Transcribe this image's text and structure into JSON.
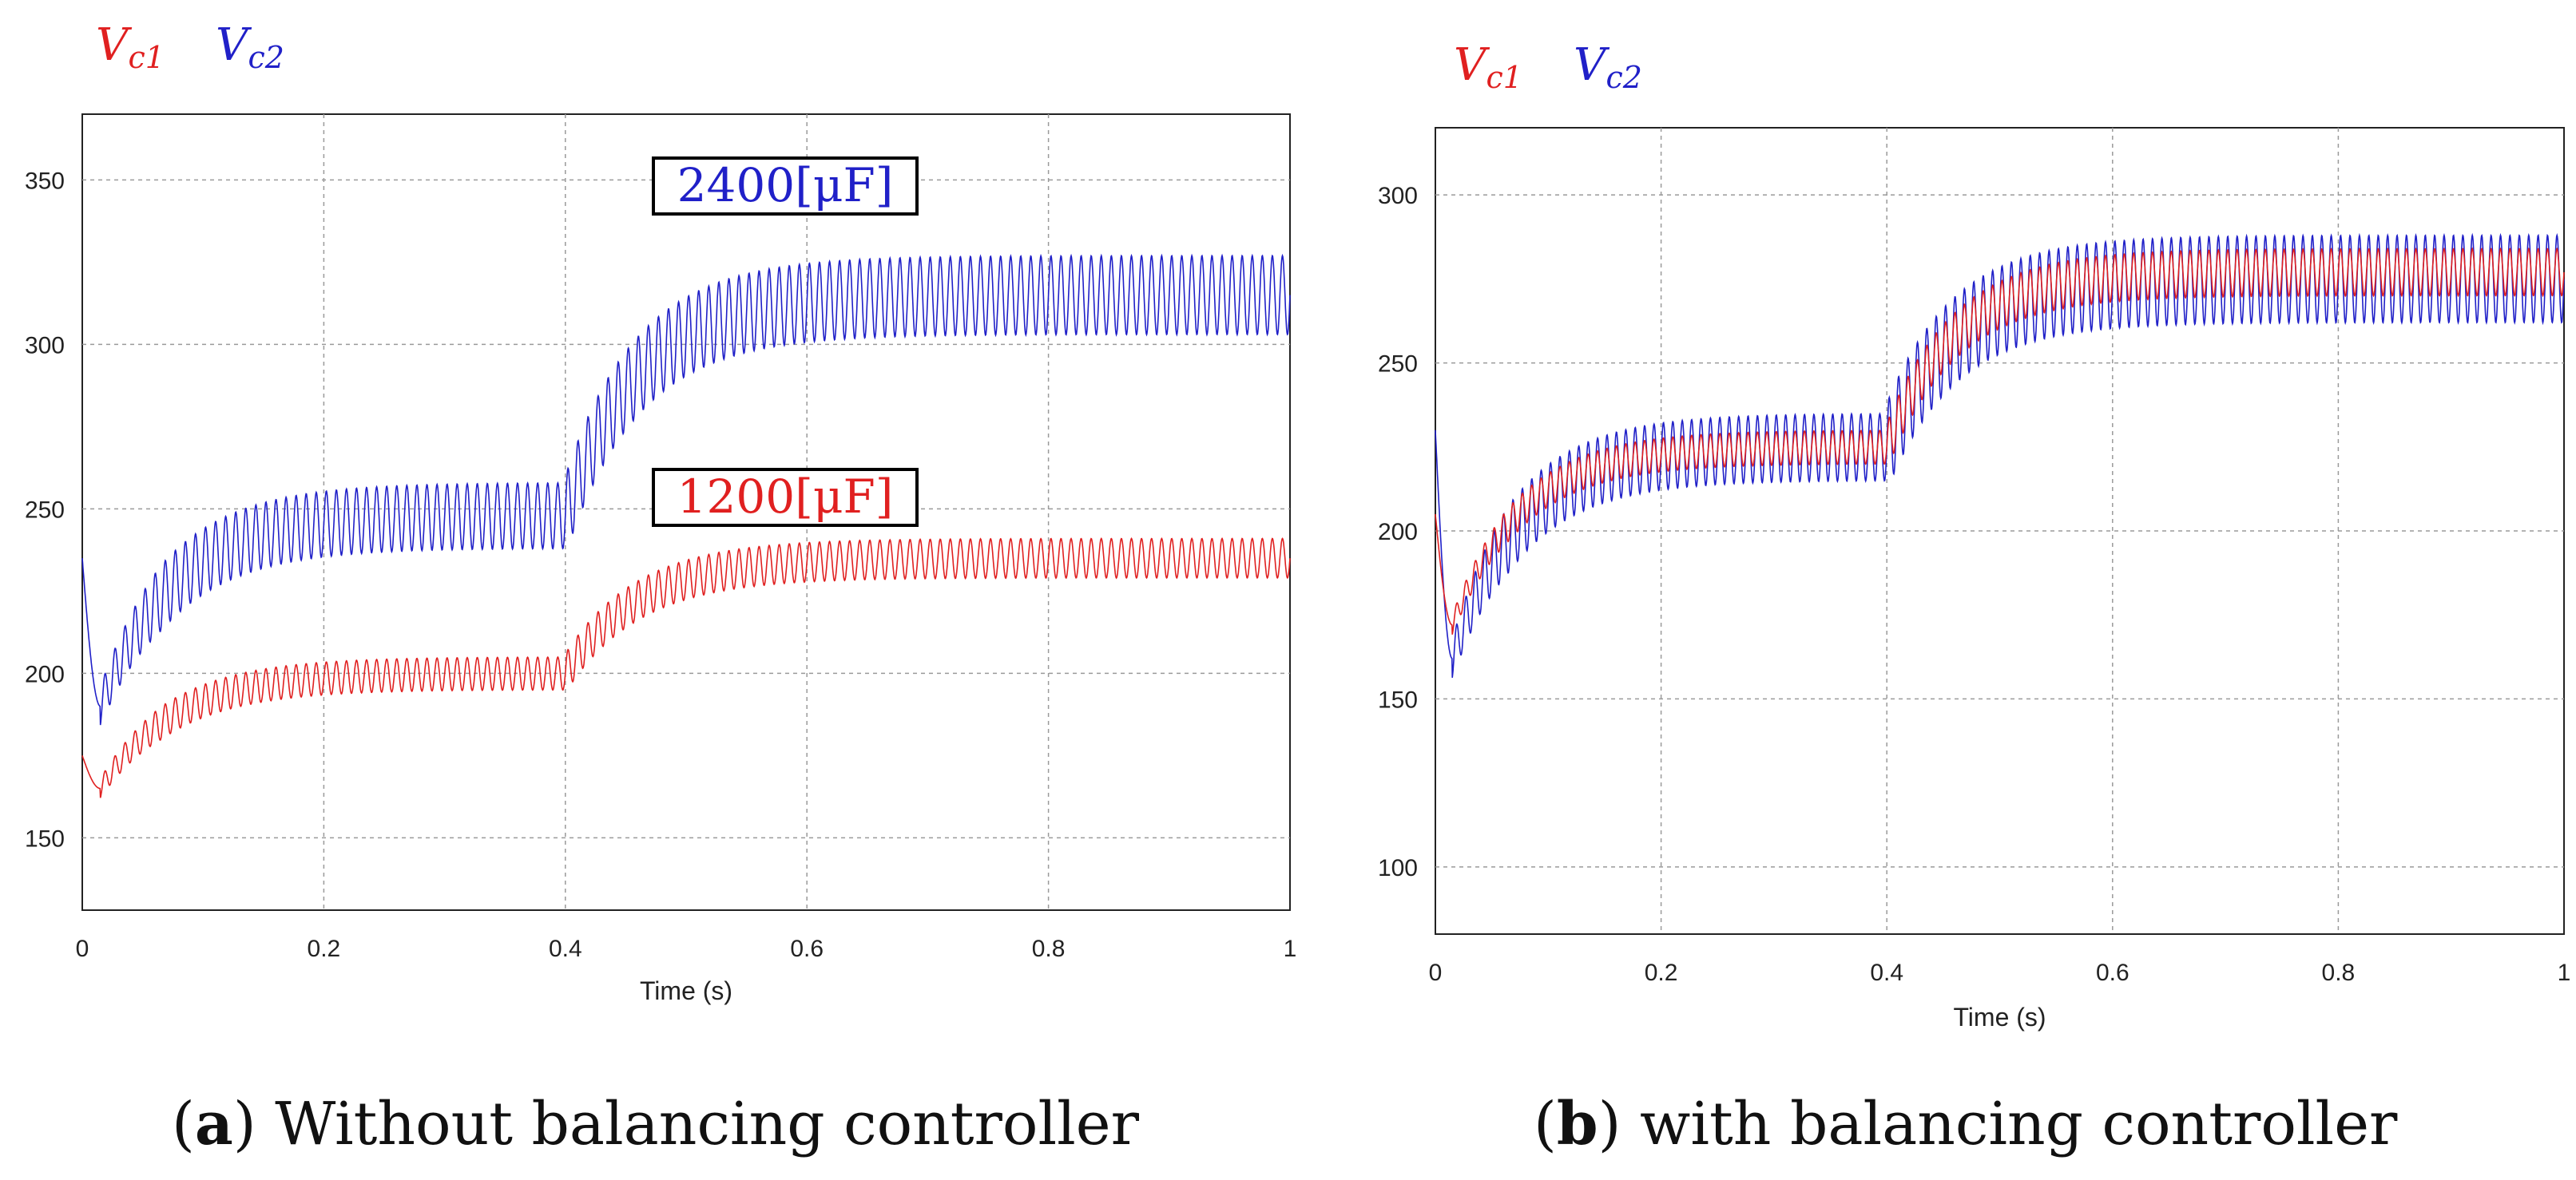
{
  "colors": {
    "vc1": "#e02020",
    "vc2": "#2020c8"
  },
  "chart_data": [
    {
      "type": "line",
      "legend": {
        "vc1": "Vc1",
        "vc2": "Vc2",
        "placement": "top-left"
      },
      "xlabel": "Time (s)",
      "ylabel": "",
      "xlim": [
        0,
        1
      ],
      "ylim": [
        128,
        370
      ],
      "xticks": [
        "0",
        "0.2",
        "0.4",
        "0.6",
        "0.8",
        "1"
      ],
      "yticks": [
        "150",
        "200",
        "250",
        "300",
        "350"
      ],
      "grid": true,
      "annotations": [
        "2400[μF]",
        "1200[μF]"
      ],
      "series": [
        {
          "name": "Vc1",
          "start": 175,
          "dip_min": 165,
          "level_1": 200,
          "ripple_1": 5,
          "step_time": 0.4,
          "level_2": 235,
          "ripple_2": 6,
          "rise_tau": 0.06
        },
        {
          "name": "Vc2",
          "start": 235,
          "dip_min": 190,
          "level_1": 248,
          "ripple_1": 10,
          "step_time": 0.4,
          "level_2": 315,
          "ripple_2": 12,
          "rise_tau": 0.06
        }
      ],
      "caption_label": "a",
      "caption_text": "Without balancing controller"
    },
    {
      "type": "line",
      "legend": {
        "vc1": "Vc1",
        "vc2": "Vc2",
        "placement": "top-left"
      },
      "xlabel": "Time (s)",
      "ylabel": "",
      "xlim": [
        0,
        1
      ],
      "ylim": [
        80,
        320
      ],
      "xticks": [
        "0",
        "0.2",
        "0.4",
        "0.6",
        "0.8",
        "1"
      ],
      "yticks": [
        "100",
        "150",
        "200",
        "250",
        "300"
      ],
      "grid": true,
      "series": [
        {
          "name": "Vc1",
          "start": 205,
          "dip_min": 172,
          "level_1": 225,
          "ripple_1": 5,
          "step_time": 0.4,
          "level_2": 277,
          "ripple_2": 7,
          "rise_tau": 0.06
        },
        {
          "name": "Vc2",
          "start": 230,
          "dip_min": 162,
          "level_1": 225,
          "ripple_1": 10,
          "step_time": 0.4,
          "level_2": 275,
          "ripple_2": 13,
          "rise_tau": 0.06
        }
      ],
      "caption_label": "b",
      "caption_text": "with balancing controller"
    }
  ]
}
